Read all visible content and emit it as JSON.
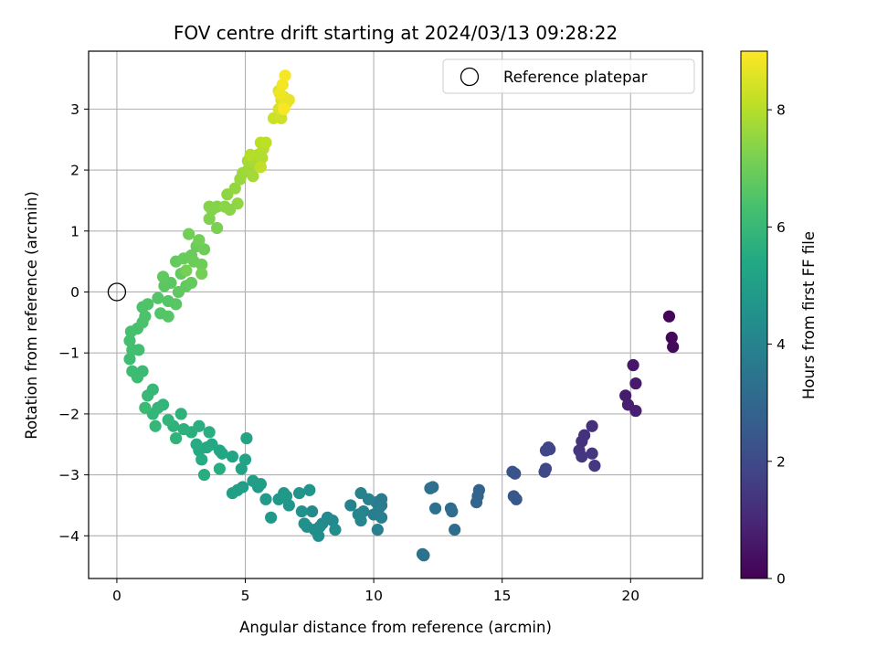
{
  "chart_data": {
    "type": "scatter",
    "title": "FOV centre drift starting at 2024/03/13 09:28:22",
    "xlabel": "Angular distance from reference (arcmin)",
    "ylabel": "Rotation from reference (arcmin)",
    "xlim": [
      -1.1,
      22.8
    ],
    "ylim": [
      -4.7,
      3.95
    ],
    "xticks": [
      0,
      5,
      10,
      15,
      20
    ],
    "yticks": [
      -4,
      -3,
      -2,
      -1,
      0,
      1,
      2,
      3
    ],
    "grid": true,
    "legend": {
      "position": "top-right",
      "entries": [
        "Reference platepar"
      ]
    },
    "reference_point": {
      "x": 0,
      "y": 0,
      "label": "Reference platepar"
    },
    "colorbar": {
      "label": "Hours from first FF file",
      "colormap": "viridis",
      "range": [
        0,
        9
      ],
      "ticks": [
        0,
        2,
        4,
        6,
        8
      ]
    },
    "points": [
      {
        "x": 21.5,
        "y": -0.4,
        "h": 0.1
      },
      {
        "x": 21.6,
        "y": -0.75,
        "h": 0.15
      },
      {
        "x": 21.65,
        "y": -0.9,
        "h": 0.2
      },
      {
        "x": 20.1,
        "y": -1.2,
        "h": 0.6
      },
      {
        "x": 20.2,
        "y": -1.5,
        "h": 0.65
      },
      {
        "x": 19.8,
        "y": -1.7,
        "h": 0.7
      },
      {
        "x": 19.9,
        "y": -1.85,
        "h": 0.75
      },
      {
        "x": 20.2,
        "y": -1.95,
        "h": 0.8
      },
      {
        "x": 18.5,
        "y": -2.2,
        "h": 1.2
      },
      {
        "x": 18.2,
        "y": -2.35,
        "h": 1.3
      },
      {
        "x": 18.1,
        "y": -2.45,
        "h": 1.3
      },
      {
        "x": 18.0,
        "y": -2.6,
        "h": 1.35
      },
      {
        "x": 18.1,
        "y": -2.7,
        "h": 1.4
      },
      {
        "x": 18.5,
        "y": -2.65,
        "h": 1.4
      },
      {
        "x": 18.6,
        "y": -2.85,
        "h": 1.45
      },
      {
        "x": 16.8,
        "y": -2.55,
        "h": 1.8
      },
      {
        "x": 16.7,
        "y": -2.6,
        "h": 1.85
      },
      {
        "x": 16.85,
        "y": -2.58,
        "h": 1.85
      },
      {
        "x": 16.7,
        "y": -2.9,
        "h": 1.9
      },
      {
        "x": 16.65,
        "y": -2.95,
        "h": 1.95
      },
      {
        "x": 15.4,
        "y": -2.95,
        "h": 2.3
      },
      {
        "x": 15.5,
        "y": -2.98,
        "h": 2.3
      },
      {
        "x": 15.45,
        "y": -3.35,
        "h": 2.4
      },
      {
        "x": 15.55,
        "y": -3.4,
        "h": 2.45
      },
      {
        "x": 14.1,
        "y": -3.25,
        "h": 2.8
      },
      {
        "x": 14.05,
        "y": -3.35,
        "h": 2.85
      },
      {
        "x": 14.0,
        "y": -3.45,
        "h": 2.9
      },
      {
        "x": 13.0,
        "y": -3.55,
        "h": 3.1
      },
      {
        "x": 13.05,
        "y": -3.6,
        "h": 3.15
      },
      {
        "x": 13.15,
        "y": -3.9,
        "h": 3.2
      },
      {
        "x": 12.3,
        "y": -3.2,
        "h": 3.3
      },
      {
        "x": 12.2,
        "y": -3.22,
        "h": 3.3
      },
      {
        "x": 12.4,
        "y": -3.55,
        "h": 3.35
      },
      {
        "x": 11.9,
        "y": -4.3,
        "h": 3.4
      },
      {
        "x": 11.95,
        "y": -4.32,
        "h": 3.4
      },
      {
        "x": 10.3,
        "y": -3.4,
        "h": 3.7
      },
      {
        "x": 10.1,
        "y": -3.45,
        "h": 3.75
      },
      {
        "x": 10.3,
        "y": -3.5,
        "h": 3.75
      },
      {
        "x": 10.2,
        "y": -3.55,
        "h": 3.8
      },
      {
        "x": 10.0,
        "y": -3.65,
        "h": 3.8
      },
      {
        "x": 10.3,
        "y": -3.7,
        "h": 3.85
      },
      {
        "x": 10.15,
        "y": -3.9,
        "h": 3.85
      },
      {
        "x": 9.5,
        "y": -3.3,
        "h": 3.95
      },
      {
        "x": 9.8,
        "y": -3.4,
        "h": 3.95
      },
      {
        "x": 9.1,
        "y": -3.5,
        "h": 4.0
      },
      {
        "x": 9.6,
        "y": -3.6,
        "h": 4.0
      },
      {
        "x": 9.4,
        "y": -3.65,
        "h": 4.05
      },
      {
        "x": 9.5,
        "y": -3.75,
        "h": 4.05
      },
      {
        "x": 8.4,
        "y": -3.75,
        "h": 4.2
      },
      {
        "x": 8.0,
        "y": -3.8,
        "h": 4.25
      },
      {
        "x": 8.2,
        "y": -3.7,
        "h": 4.25
      },
      {
        "x": 7.9,
        "y": -3.85,
        "h": 4.3
      },
      {
        "x": 7.6,
        "y": -3.6,
        "h": 4.3
      },
      {
        "x": 7.4,
        "y": -3.85,
        "h": 4.35
      },
      {
        "x": 7.7,
        "y": -3.9,
        "h": 4.35
      },
      {
        "x": 7.85,
        "y": -4.0,
        "h": 4.4
      },
      {
        "x": 8.5,
        "y": -3.9,
        "h": 4.4
      },
      {
        "x": 7.2,
        "y": -3.6,
        "h": 4.5
      },
      {
        "x": 7.3,
        "y": -3.8,
        "h": 4.5
      },
      {
        "x": 7.1,
        "y": -3.3,
        "h": 4.6
      },
      {
        "x": 7.5,
        "y": -3.25,
        "h": 4.6
      },
      {
        "x": 6.7,
        "y": -3.5,
        "h": 4.7
      },
      {
        "x": 6.5,
        "y": -3.3,
        "h": 4.75
      },
      {
        "x": 6.3,
        "y": -3.4,
        "h": 4.75
      },
      {
        "x": 6.6,
        "y": -3.35,
        "h": 4.8
      },
      {
        "x": 6.0,
        "y": -3.7,
        "h": 4.8
      },
      {
        "x": 5.8,
        "y": -3.4,
        "h": 4.85
      },
      {
        "x": 5.5,
        "y": -3.2,
        "h": 4.9
      },
      {
        "x": 5.3,
        "y": -3.1,
        "h": 4.95
      },
      {
        "x": 5.6,
        "y": -3.15,
        "h": 4.95
      },
      {
        "x": 4.9,
        "y": -3.2,
        "h": 5.0
      },
      {
        "x": 4.7,
        "y": -3.25,
        "h": 5.05
      },
      {
        "x": 4.5,
        "y": -3.3,
        "h": 5.1
      },
      {
        "x": 5.0,
        "y": -2.75,
        "h": 5.15
      },
      {
        "x": 4.85,
        "y": -2.9,
        "h": 5.2
      },
      {
        "x": 5.05,
        "y": -2.4,
        "h": 5.25
      },
      {
        "x": 4.5,
        "y": -2.7,
        "h": 5.3
      },
      {
        "x": 4.1,
        "y": -2.65,
        "h": 5.35
      },
      {
        "x": 4.0,
        "y": -2.6,
        "h": 5.35
      },
      {
        "x": 3.7,
        "y": -2.5,
        "h": 5.4
      },
      {
        "x": 3.5,
        "y": -2.55,
        "h": 5.45
      },
      {
        "x": 3.2,
        "y": -2.6,
        "h": 5.45
      },
      {
        "x": 3.3,
        "y": -2.75,
        "h": 5.5
      },
      {
        "x": 3.1,
        "y": -2.5,
        "h": 5.5
      },
      {
        "x": 3.4,
        "y": -3.0,
        "h": 5.55
      },
      {
        "x": 4.0,
        "y": -2.9,
        "h": 5.55
      },
      {
        "x": 3.6,
        "y": -2.3,
        "h": 5.6
      },
      {
        "x": 3.2,
        "y": -2.2,
        "h": 5.6
      },
      {
        "x": 2.9,
        "y": -2.3,
        "h": 5.65
      },
      {
        "x": 2.6,
        "y": -2.25,
        "h": 5.7
      },
      {
        "x": 2.5,
        "y": -2.0,
        "h": 5.75
      },
      {
        "x": 2.2,
        "y": -2.2,
        "h": 5.75
      },
      {
        "x": 2.3,
        "y": -2.4,
        "h": 5.8
      },
      {
        "x": 2.0,
        "y": -2.1,
        "h": 5.85
      },
      {
        "x": 1.8,
        "y": -1.85,
        "h": 5.85
      },
      {
        "x": 1.6,
        "y": -1.9,
        "h": 5.9
      },
      {
        "x": 1.4,
        "y": -2.0,
        "h": 5.9
      },
      {
        "x": 1.5,
        "y": -2.2,
        "h": 5.95
      },
      {
        "x": 1.4,
        "y": -1.6,
        "h": 6.0
      },
      {
        "x": 1.2,
        "y": -1.7,
        "h": 6.0
      },
      {
        "x": 1.1,
        "y": -1.9,
        "h": 6.05
      },
      {
        "x": 1.0,
        "y": -1.3,
        "h": 6.1
      },
      {
        "x": 0.8,
        "y": -1.4,
        "h": 6.15
      },
      {
        "x": 0.6,
        "y": -1.3,
        "h": 6.15
      },
      {
        "x": 0.5,
        "y": -1.1,
        "h": 6.2
      },
      {
        "x": 0.6,
        "y": -0.95,
        "h": 6.25
      },
      {
        "x": 0.85,
        "y": -0.95,
        "h": 6.25
      },
      {
        "x": 0.5,
        "y": -0.8,
        "h": 6.3
      },
      {
        "x": 0.55,
        "y": -0.65,
        "h": 6.35
      },
      {
        "x": 0.8,
        "y": -0.6,
        "h": 6.35
      },
      {
        "x": 1.0,
        "y": -0.5,
        "h": 6.4
      },
      {
        "x": 1.1,
        "y": -0.4,
        "h": 6.45
      },
      {
        "x": 1.0,
        "y": -0.25,
        "h": 6.45
      },
      {
        "x": 1.2,
        "y": -0.2,
        "h": 6.5
      },
      {
        "x": 1.6,
        "y": -0.1,
        "h": 6.55
      },
      {
        "x": 1.7,
        "y": -0.35,
        "h": 6.55
      },
      {
        "x": 2.0,
        "y": -0.4,
        "h": 6.6
      },
      {
        "x": 2.0,
        "y": -0.15,
        "h": 6.6
      },
      {
        "x": 2.3,
        "y": -0.2,
        "h": 6.65
      },
      {
        "x": 1.85,
        "y": 0.1,
        "h": 6.7
      },
      {
        "x": 2.1,
        "y": 0.15,
        "h": 6.7
      },
      {
        "x": 1.8,
        "y": 0.25,
        "h": 6.75
      },
      {
        "x": 2.4,
        "y": 0.0,
        "h": 6.75
      },
      {
        "x": 2.5,
        "y": 0.3,
        "h": 6.8
      },
      {
        "x": 2.7,
        "y": 0.1,
        "h": 6.8
      },
      {
        "x": 2.9,
        "y": 0.15,
        "h": 6.85
      },
      {
        "x": 2.3,
        "y": 0.5,
        "h": 6.85
      },
      {
        "x": 2.6,
        "y": 0.55,
        "h": 6.9
      },
      {
        "x": 2.9,
        "y": 0.6,
        "h": 6.9
      },
      {
        "x": 3.1,
        "y": 0.75,
        "h": 6.95
      },
      {
        "x": 3.0,
        "y": 0.5,
        "h": 6.95
      },
      {
        "x": 3.3,
        "y": 0.45,
        "h": 7.0
      },
      {
        "x": 3.4,
        "y": 0.7,
        "h": 7.0
      },
      {
        "x": 3.2,
        "y": 0.85,
        "h": 7.05
      },
      {
        "x": 2.8,
        "y": 0.95,
        "h": 7.05
      },
      {
        "x": 3.3,
        "y": 0.3,
        "h": 7.1
      },
      {
        "x": 2.7,
        "y": 0.35,
        "h": 7.1
      },
      {
        "x": 3.9,
        "y": 1.05,
        "h": 7.2
      },
      {
        "x": 3.6,
        "y": 1.2,
        "h": 7.25
      },
      {
        "x": 3.7,
        "y": 1.35,
        "h": 7.3
      },
      {
        "x": 3.9,
        "y": 1.4,
        "h": 7.3
      },
      {
        "x": 3.6,
        "y": 1.4,
        "h": 7.35
      },
      {
        "x": 4.2,
        "y": 1.4,
        "h": 7.4
      },
      {
        "x": 4.4,
        "y": 1.35,
        "h": 7.4
      },
      {
        "x": 4.3,
        "y": 1.6,
        "h": 7.45
      },
      {
        "x": 4.7,
        "y": 1.45,
        "h": 7.5
      },
      {
        "x": 4.6,
        "y": 1.7,
        "h": 7.55
      },
      {
        "x": 4.8,
        "y": 1.85,
        "h": 7.6
      },
      {
        "x": 4.9,
        "y": 1.95,
        "h": 7.65
      },
      {
        "x": 5.1,
        "y": 2.0,
        "h": 7.7
      },
      {
        "x": 5.3,
        "y": 1.9,
        "h": 7.75
      },
      {
        "x": 5.1,
        "y": 2.15,
        "h": 7.8
      },
      {
        "x": 5.4,
        "y": 2.1,
        "h": 7.85
      },
      {
        "x": 5.5,
        "y": 2.25,
        "h": 7.9
      },
      {
        "x": 5.65,
        "y": 2.2,
        "h": 7.95
      },
      {
        "x": 5.7,
        "y": 2.35,
        "h": 8.0
      },
      {
        "x": 5.2,
        "y": 2.25,
        "h": 8.0
      },
      {
        "x": 5.6,
        "y": 2.45,
        "h": 8.05
      },
      {
        "x": 5.8,
        "y": 2.45,
        "h": 8.1
      },
      {
        "x": 5.6,
        "y": 2.05,
        "h": 8.15
      },
      {
        "x": 6.1,
        "y": 2.85,
        "h": 8.3
      },
      {
        "x": 6.4,
        "y": 2.85,
        "h": 8.35
      },
      {
        "x": 6.3,
        "y": 3.0,
        "h": 8.45
      },
      {
        "x": 6.4,
        "y": 3.15,
        "h": 8.5
      },
      {
        "x": 6.3,
        "y": 3.3,
        "h": 8.55
      },
      {
        "x": 6.5,
        "y": 3.2,
        "h": 8.6
      },
      {
        "x": 6.6,
        "y": 3.1,
        "h": 8.65
      },
      {
        "x": 6.7,
        "y": 3.15,
        "h": 8.7
      },
      {
        "x": 6.5,
        "y": 3.05,
        "h": 8.75
      },
      {
        "x": 6.35,
        "y": 3.25,
        "h": 8.8
      },
      {
        "x": 6.45,
        "y": 3.4,
        "h": 8.85
      },
      {
        "x": 6.55,
        "y": 3.55,
        "h": 8.9
      },
      {
        "x": 6.5,
        "y": 3.0,
        "h": 8.95
      }
    ]
  }
}
